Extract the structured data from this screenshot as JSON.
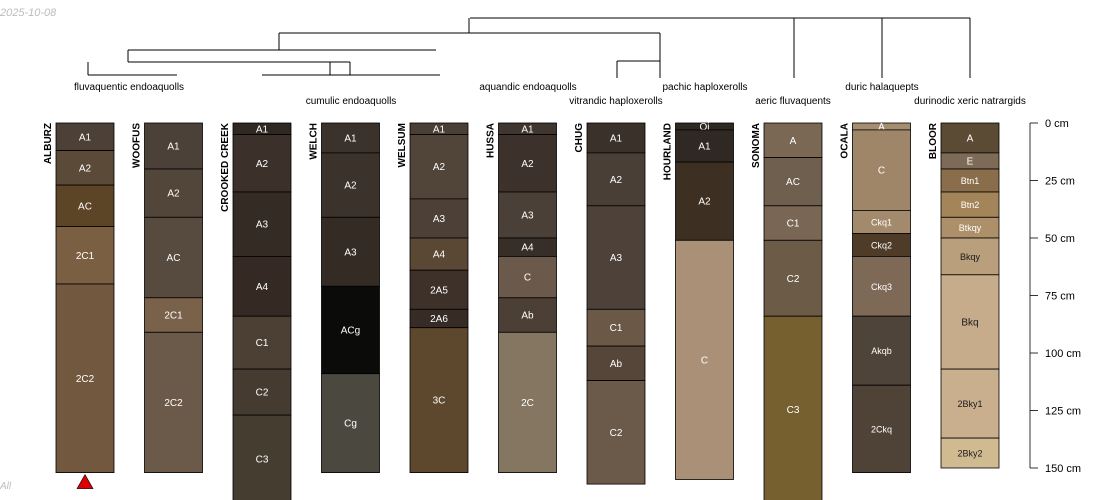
{
  "date_stamp": "2025-10-08",
  "footer_text": "All",
  "depth_axis": {
    "unit": "cm",
    "ticks": [
      0,
      25,
      50,
      75,
      100,
      125,
      150
    ],
    "tick_labels": [
      "0 cm",
      "25 cm",
      "50 cm",
      "75 cm",
      "100 cm",
      "125 cm",
      "150 cm"
    ]
  },
  "taxa": [
    "fluvaquentic endoaquolls",
    "cumulic endoaquolls",
    "aquandic endoaquolls",
    "vitrandic haploxerolls",
    "pachic haploxerolls",
    "aeric fluvaquents",
    "duric halaquepts",
    "durinodic xeric natrargids"
  ],
  "profiles": [
    {
      "name": "ALBURZ",
      "marker": true,
      "horizons": [
        {
          "name": "A1",
          "top": 0,
          "bottom": 12,
          "color": "#4d4137"
        },
        {
          "name": "A2",
          "top": 12,
          "bottom": 27,
          "color": "#5c4a38"
        },
        {
          "name": "AC",
          "top": 27,
          "bottom": 45,
          "color": "#5b4526"
        },
        {
          "name": "2C1",
          "top": 45,
          "bottom": 70,
          "color": "#7a5f42"
        },
        {
          "name": "2C2",
          "top": 70,
          "bottom": 152,
          "color": "#72583e"
        }
      ]
    },
    {
      "name": "WOOFUS",
      "horizons": [
        {
          "name": "A1",
          "top": 0,
          "bottom": 20,
          "color": "#4c4138"
        },
        {
          "name": "A2",
          "top": 20,
          "bottom": 41,
          "color": "#524539"
        },
        {
          "name": "AC",
          "top": 41,
          "bottom": 76,
          "color": "#574b40"
        },
        {
          "name": "2C1",
          "top": 76,
          "bottom": 91,
          "color": "#7a614a"
        },
        {
          "name": "2C2",
          "top": 91,
          "bottom": 152,
          "color": "#6b5a49"
        }
      ]
    },
    {
      "name": "CROOKED CREEK",
      "horizons": [
        {
          "name": "A1",
          "top": 0,
          "bottom": 5,
          "color": "#2f2722"
        },
        {
          "name": "A2",
          "top": 5,
          "bottom": 30,
          "color": "#3b302a"
        },
        {
          "name": "A3",
          "top": 30,
          "bottom": 58,
          "color": "#352b25"
        },
        {
          "name": "A4",
          "top": 58,
          "bottom": 84,
          "color": "#342a23"
        },
        {
          "name": "C1",
          "top": 84,
          "bottom": 107,
          "color": "#4c4034"
        },
        {
          "name": "C2",
          "top": 107,
          "bottom": 127,
          "color": "#463b30"
        },
        {
          "name": "C3",
          "top": 127,
          "bottom": 165,
          "color": "#463d31"
        }
      ]
    },
    {
      "name": "WELCH",
      "horizons": [
        {
          "name": "A1",
          "top": 0,
          "bottom": 13,
          "color": "#3b322c"
        },
        {
          "name": "A2",
          "top": 13,
          "bottom": 41,
          "color": "#3b322c"
        },
        {
          "name": "A3",
          "top": 41,
          "bottom": 71,
          "color": "#342b25"
        },
        {
          "name": "ACg",
          "top": 71,
          "bottom": 109,
          "color": "#0b0b0a"
        },
        {
          "name": "Cg",
          "top": 109,
          "bottom": 152,
          "color": "#4b4840"
        }
      ]
    },
    {
      "name": "WELSUM",
      "horizons": [
        {
          "name": "A1",
          "top": 0,
          "bottom": 5,
          "color": "#4a3f36"
        },
        {
          "name": "A2",
          "top": 5,
          "bottom": 33,
          "color": "#514439"
        },
        {
          "name": "A3",
          "top": 33,
          "bottom": 50,
          "color": "#4d4137"
        },
        {
          "name": "A4",
          "top": 50,
          "bottom": 64,
          "color": "#5a4834"
        },
        {
          "name": "2A5",
          "top": 64,
          "bottom": 81,
          "color": "#3d312a"
        },
        {
          "name": "2A6",
          "top": 81,
          "bottom": 89,
          "color": "#362c25"
        },
        {
          "name": "3C",
          "top": 89,
          "bottom": 152,
          "color": "#5d482e"
        }
      ]
    },
    {
      "name": "HUSSA",
      "horizons": [
        {
          "name": "A1",
          "top": 0,
          "bottom": 5,
          "color": "#403630"
        },
        {
          "name": "A2",
          "top": 5,
          "bottom": 30,
          "color": "#3c322b"
        },
        {
          "name": "A3",
          "top": 30,
          "bottom": 50,
          "color": "#4b4038"
        },
        {
          "name": "A4",
          "top": 50,
          "bottom": 58,
          "color": "#372e27"
        },
        {
          "name": "C",
          "top": 58,
          "bottom": 76,
          "color": "#6b5a4b"
        },
        {
          "name": "Ab",
          "top": 76,
          "bottom": 91,
          "color": "#4c4036"
        },
        {
          "name": "2C",
          "top": 91,
          "bottom": 152,
          "color": "#847661"
        }
      ]
    },
    {
      "name": "CHUG",
      "horizons": [
        {
          "name": "A1",
          "top": 0,
          "bottom": 13,
          "color": "#3b312b"
        },
        {
          "name": "A2",
          "top": 13,
          "bottom": 36,
          "color": "#4a3f37"
        },
        {
          "name": "A3",
          "top": 36,
          "bottom": 81,
          "color": "#4d4139"
        },
        {
          "name": "C1",
          "top": 81,
          "bottom": 97,
          "color": "#6c5847"
        },
        {
          "name": "Ab",
          "top": 97,
          "bottom": 112,
          "color": "#554639"
        },
        {
          "name": "C2",
          "top": 112,
          "bottom": 157,
          "color": "#6b5a4a"
        }
      ]
    },
    {
      "name": "HOURLAND",
      "horizons": [
        {
          "name": "Oi",
          "top": 0,
          "bottom": 3,
          "color": "#2e2823"
        },
        {
          "name": "A1",
          "top": 3,
          "bottom": 17,
          "color": "#2f2823"
        },
        {
          "name": "A2",
          "top": 17,
          "bottom": 51,
          "color": "#3d2f21"
        },
        {
          "name": "C",
          "top": 51,
          "bottom": 155,
          "color": "#a99077"
        }
      ]
    },
    {
      "name": "SONOMA",
      "horizons": [
        {
          "name": "A",
          "top": 0,
          "bottom": 15,
          "color": "#7a6855"
        },
        {
          "name": "AC",
          "top": 15,
          "bottom": 36,
          "color": "#6f5f4e"
        },
        {
          "name": "C1",
          "top": 36,
          "bottom": 51,
          "color": "#7a6654"
        },
        {
          "name": "C2",
          "top": 51,
          "bottom": 84,
          "color": "#6c5c47"
        },
        {
          "name": "C3",
          "top": 84,
          "bottom": 165,
          "color": "#76602f"
        }
      ]
    },
    {
      "name": "OCALA",
      "horizons": [
        {
          "name": "A",
          "top": 0,
          "bottom": 3,
          "color": "#a58d70"
        },
        {
          "name": "C",
          "top": 3,
          "bottom": 38,
          "color": "#a08668"
        },
        {
          "name": "Ckq1",
          "top": 38,
          "bottom": 48,
          "color": "#a48a6c"
        },
        {
          "name": "Ckq2",
          "top": 48,
          "bottom": 58,
          "color": "#4e3c29"
        },
        {
          "name": "Ckq3",
          "top": 58,
          "bottom": 84,
          "color": "#7e6957"
        },
        {
          "name": "Akqb",
          "top": 84,
          "bottom": 114,
          "color": "#4f4439"
        },
        {
          "name": "2Ckq",
          "top": 114,
          "bottom": 152,
          "color": "#4f4337"
        }
      ]
    },
    {
      "name": "BLOOR",
      "horizons": [
        {
          "name": "A",
          "top": 0,
          "bottom": 13,
          "color": "#5b4b35"
        },
        {
          "name": "E",
          "top": 13,
          "bottom": 20,
          "color": "#7e6b57"
        },
        {
          "name": "Btn1",
          "top": 20,
          "bottom": 30,
          "color": "#8a6e4c"
        },
        {
          "name": "Btn2",
          "top": 30,
          "bottom": 41,
          "color": "#a38559"
        },
        {
          "name": "Btkqy",
          "top": 41,
          "bottom": 50,
          "color": "#ad9069"
        },
        {
          "name": "Bkqy",
          "top": 50,
          "bottom": 66,
          "color": "#b99f7b"
        },
        {
          "name": "Bkq",
          "top": 66,
          "bottom": 107,
          "color": "#c6ac8b"
        },
        {
          "name": "2Bky1",
          "top": 107,
          "bottom": 137,
          "color": "#c9af8d"
        },
        {
          "name": "2Bky2",
          "top": 137,
          "bottom": 150,
          "color": "#d0ba90"
        }
      ]
    }
  ]
}
